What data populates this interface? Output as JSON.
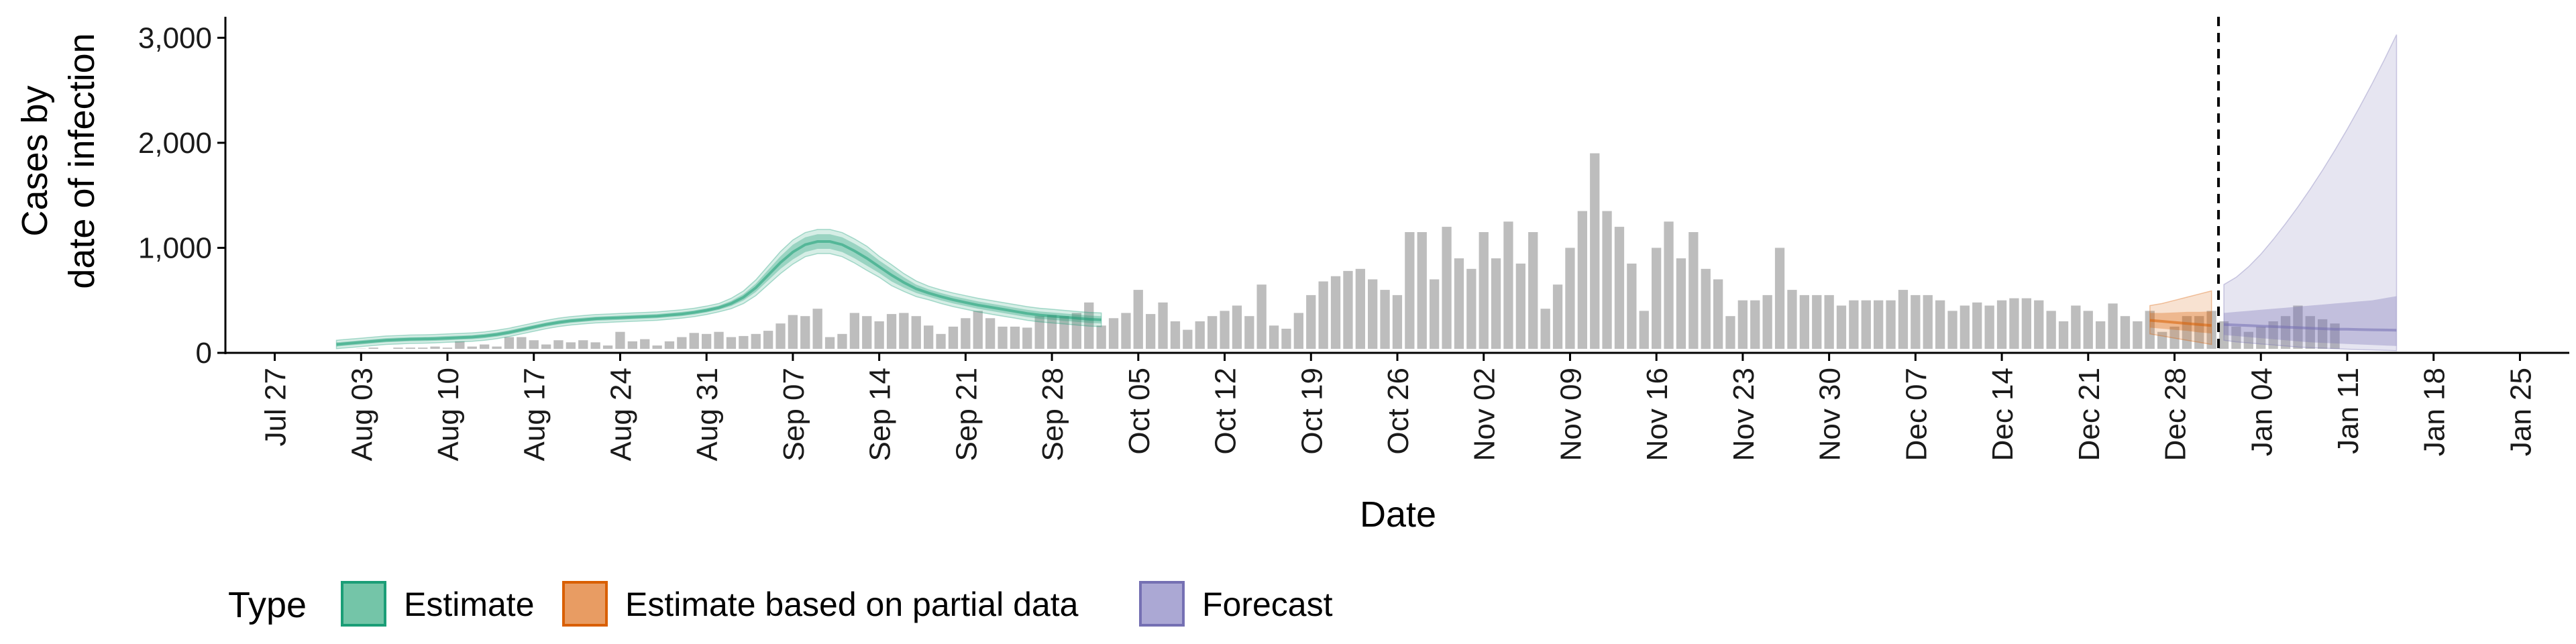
{
  "chart_data": {
    "type": "bar",
    "xlabel": "Date",
    "ylabel_lines": [
      "Cases by",
      "date of infection"
    ],
    "ylim": [
      0,
      3200
    ],
    "yticks": [
      0,
      1000,
      2000,
      3000
    ],
    "ytick_labels": [
      "0",
      "1,000",
      "2,000",
      "3,000"
    ],
    "x_start": "2020-07-27",
    "x_range": [
      "2020-07-23",
      "2021-01-29"
    ],
    "xtick_labels": [
      "Jul 27",
      "Aug 03",
      "Aug 10",
      "Aug 17",
      "Aug 24",
      "Aug 31",
      "Sep 07",
      "Sep 14",
      "Sep 21",
      "Sep 28",
      "Oct 05",
      "Oct 12",
      "Oct 19",
      "Oct 26",
      "Nov 02",
      "Nov 09",
      "Nov 16",
      "Nov 23",
      "Nov 30",
      "Dec 07",
      "Dec 14",
      "Dec 21",
      "Dec 28",
      "Jan 04",
      "Jan 11",
      "Jan 18",
      "Jan 25"
    ],
    "forecast_start": "2021-01-01",
    "bars": {
      "start": "2020-07-31",
      "values": [
        15,
        25,
        10,
        40,
        50,
        30,
        50,
        50,
        50,
        60,
        50,
        110,
        60,
        80,
        60,
        150,
        150,
        120,
        80,
        120,
        100,
        120,
        100,
        70,
        200,
        110,
        130,
        70,
        110,
        150,
        190,
        180,
        200,
        150,
        160,
        180,
        210,
        280,
        360,
        350,
        420,
        150,
        180,
        380,
        350,
        300,
        370,
        380,
        350,
        260,
        180,
        250,
        330,
        400,
        330,
        250,
        250,
        240,
        350,
        360,
        350,
        380,
        480,
        260,
        330,
        380,
        600,
        370,
        480,
        300,
        220,
        300,
        350,
        400,
        450,
        350,
        650,
        260,
        230,
        380,
        550,
        680,
        730,
        780,
        800,
        700,
        600,
        550,
        1150,
        1150,
        700,
        1200,
        900,
        800,
        1150,
        900,
        1250,
        850,
        1150,
        420,
        650,
        1000,
        1350,
        1900,
        1350,
        1200,
        850,
        400,
        1000,
        1250,
        900,
        1150,
        800,
        700,
        350,
        500,
        500,
        550,
        1000,
        600,
        550,
        550,
        550,
        450,
        500,
        500,
        500,
        500,
        600,
        550,
        550,
        500,
        400,
        450,
        480,
        450,
        500,
        520,
        520,
        500,
        400,
        300,
        450,
        400,
        300,
        470,
        350,
        300,
        400,
        200,
        250,
        350,
        350,
        400,
        300,
        250,
        200,
        250,
        300,
        350,
        450,
        350,
        320,
        280
      ]
    },
    "series": [
      {
        "name": "Estimate",
        "color": "#1b9e77",
        "start": "2020-08-01",
        "median": [
          80,
          90,
          100,
          110,
          120,
          125,
          130,
          132,
          135,
          140,
          145,
          150,
          160,
          175,
          195,
          220,
          245,
          270,
          290,
          305,
          315,
          325,
          330,
          335,
          340,
          345,
          350,
          360,
          370,
          385,
          405,
          430,
          470,
          530,
          620,
          740,
          860,
          960,
          1030,
          1060,
          1060,
          1030,
          970,
          900,
          820,
          740,
          670,
          610,
          570,
          535,
          505,
          480,
          455,
          435,
          415,
          395,
          375,
          360,
          350,
          340,
          330,
          320,
          315
        ],
        "inner": [
          [
            60,
            100
          ],
          [
            70,
            110
          ],
          [
            80,
            120
          ],
          [
            90,
            130
          ],
          [
            100,
            140
          ],
          [
            105,
            145
          ],
          [
            110,
            150
          ],
          [
            112,
            152
          ],
          [
            115,
            155
          ],
          [
            120,
            160
          ],
          [
            125,
            165
          ],
          [
            130,
            170
          ],
          [
            140,
            180
          ],
          [
            155,
            195
          ],
          [
            175,
            215
          ],
          [
            200,
            240
          ],
          [
            225,
            265
          ],
          [
            250,
            290
          ],
          [
            270,
            310
          ],
          [
            285,
            325
          ],
          [
            295,
            335
          ],
          [
            305,
            345
          ],
          [
            310,
            350
          ],
          [
            315,
            355
          ],
          [
            320,
            360
          ],
          [
            325,
            365
          ],
          [
            330,
            370
          ],
          [
            340,
            380
          ],
          [
            350,
            390
          ],
          [
            365,
            405
          ],
          [
            385,
            425
          ],
          [
            410,
            450
          ],
          [
            445,
            495
          ],
          [
            500,
            560
          ],
          [
            580,
            660
          ],
          [
            690,
            790
          ],
          [
            800,
            920
          ],
          [
            890,
            1030
          ],
          [
            960,
            1100
          ],
          [
            990,
            1130
          ],
          [
            990,
            1130
          ],
          [
            960,
            1100
          ],
          [
            900,
            1040
          ],
          [
            830,
            970
          ],
          [
            760,
            880
          ],
          [
            680,
            800
          ],
          [
            620,
            720
          ],
          [
            570,
            650
          ],
          [
            535,
            605
          ],
          [
            500,
            570
          ],
          [
            470,
            540
          ],
          [
            445,
            515
          ],
          [
            420,
            490
          ],
          [
            400,
            470
          ],
          [
            380,
            450
          ],
          [
            360,
            430
          ],
          [
            340,
            410
          ],
          [
            325,
            395
          ],
          [
            315,
            385
          ],
          [
            305,
            375
          ],
          [
            295,
            365
          ],
          [
            285,
            355
          ],
          [
            280,
            350
          ]
        ],
        "outer": [
          [
            40,
            120
          ],
          [
            50,
            130
          ],
          [
            60,
            140
          ],
          [
            70,
            150
          ],
          [
            80,
            160
          ],
          [
            85,
            165
          ],
          [
            90,
            170
          ],
          [
            92,
            172
          ],
          [
            95,
            175
          ],
          [
            100,
            180
          ],
          [
            105,
            185
          ],
          [
            110,
            190
          ],
          [
            120,
            200
          ],
          [
            135,
            215
          ],
          [
            155,
            235
          ],
          [
            180,
            260
          ],
          [
            205,
            285
          ],
          [
            230,
            310
          ],
          [
            250,
            330
          ],
          [
            265,
            345
          ],
          [
            275,
            355
          ],
          [
            285,
            365
          ],
          [
            290,
            370
          ],
          [
            295,
            375
          ],
          [
            300,
            380
          ],
          [
            305,
            385
          ],
          [
            310,
            390
          ],
          [
            320,
            400
          ],
          [
            330,
            410
          ],
          [
            345,
            425
          ],
          [
            365,
            445
          ],
          [
            390,
            470
          ],
          [
            420,
            520
          ],
          [
            470,
            590
          ],
          [
            545,
            695
          ],
          [
            650,
            830
          ],
          [
            755,
            965
          ],
          [
            845,
            1075
          ],
          [
            915,
            1145
          ],
          [
            945,
            1175
          ],
          [
            945,
            1175
          ],
          [
            915,
            1145
          ],
          [
            855,
            1085
          ],
          [
            785,
            1015
          ],
          [
            720,
            920
          ],
          [
            640,
            840
          ],
          [
            585,
            755
          ],
          [
            535,
            685
          ],
          [
            505,
            635
          ],
          [
            470,
            600
          ],
          [
            440,
            570
          ],
          [
            415,
            545
          ],
          [
            390,
            520
          ],
          [
            370,
            500
          ],
          [
            350,
            480
          ],
          [
            330,
            460
          ],
          [
            310,
            440
          ],
          [
            295,
            425
          ],
          [
            285,
            415
          ],
          [
            275,
            405
          ],
          [
            265,
            395
          ],
          [
            255,
            385
          ],
          [
            250,
            380
          ]
        ]
      },
      {
        "name": "Estimate based on partial data",
        "color": "#d95f02",
        "start": "2020-12-26",
        "median": [
          310,
          300,
          290,
          280,
          270,
          260
        ],
        "inner": [
          [
            240,
            380
          ],
          [
            230,
            380
          ],
          [
            220,
            385
          ],
          [
            210,
            390
          ],
          [
            195,
            390
          ],
          [
            185,
            395
          ]
        ],
        "outer": [
          [
            180,
            450
          ],
          [
            160,
            470
          ],
          [
            140,
            500
          ],
          [
            120,
            530
          ],
          [
            100,
            560
          ],
          [
            80,
            590
          ]
        ]
      },
      {
        "name": "Forecast",
        "color": "#7570b3",
        "start": "2021-01-01",
        "median": [
          270,
          265,
          260,
          255,
          250,
          245,
          240,
          235,
          230,
          225,
          225,
          222,
          220,
          218,
          216
        ],
        "inner": [
          [
            170,
            380
          ],
          [
            160,
            390
          ],
          [
            150,
            400
          ],
          [
            140,
            410
          ],
          [
            130,
            420
          ],
          [
            120,
            430
          ],
          [
            110,
            440
          ],
          [
            100,
            450
          ],
          [
            95,
            460
          ],
          [
            90,
            470
          ],
          [
            85,
            480
          ],
          [
            80,
            490
          ],
          [
            75,
            500
          ],
          [
            70,
            520
          ],
          [
            65,
            540
          ]
        ],
        "outer": [
          [
            120,
            650
          ],
          [
            105,
            720
          ],
          [
            95,
            820
          ],
          [
            85,
            940
          ],
          [
            75,
            1080
          ],
          [
            65,
            1230
          ],
          [
            55,
            1390
          ],
          [
            50,
            1560
          ],
          [
            45,
            1740
          ],
          [
            40,
            1930
          ],
          [
            35,
            2130
          ],
          [
            30,
            2340
          ],
          [
            28,
            2560
          ],
          [
            24,
            2790
          ],
          [
            20,
            3030
          ]
        ]
      }
    ],
    "legend": {
      "title": "Type",
      "position": "bottom-left",
      "items": [
        {
          "label": "Estimate",
          "fill": "#74c5a8",
          "stroke": "#1b9e77"
        },
        {
          "label": "Estimate based on partial data",
          "fill": "#e89c63",
          "stroke": "#d95f02"
        },
        {
          "label": "Forecast",
          "fill": "#aba8d4",
          "stroke": "#7570b3"
        }
      ]
    },
    "bar_color": "#bdbdbd",
    "grid": false
  }
}
